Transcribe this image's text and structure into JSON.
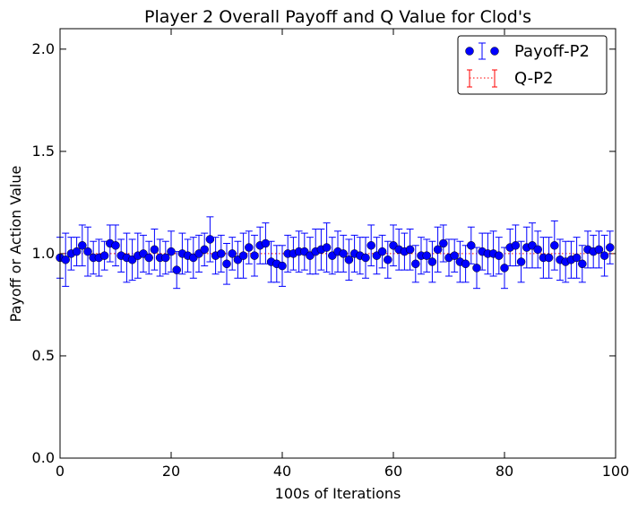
{
  "chart_data": {
    "type": "scatter",
    "title": "Player 2 Overall Payoff and Q Value for Clod's",
    "xlabel": "100s of Iterations",
    "ylabel": "Payoff or Action Value",
    "xlim": [
      0,
      100
    ],
    "ylim": [
      0,
      2.1
    ],
    "xticks": [
      0,
      20,
      40,
      60,
      80,
      100
    ],
    "yticks": [
      0.0,
      0.5,
      1.0,
      1.5,
      2.0
    ],
    "xtick_labels": [
      "0",
      "20",
      "40",
      "60",
      "80",
      "100"
    ],
    "ytick_labels": [
      "0.0",
      "0.5",
      "1.0",
      "1.5",
      "2.0"
    ],
    "grid": false,
    "legend_position": "top-right",
    "series": [
      {
        "name": "Payoff-P2",
        "style": "points-with-errorbars",
        "color": "#0000ff",
        "x": [
          0,
          1,
          2,
          3,
          4,
          5,
          6,
          7,
          8,
          9,
          10,
          11,
          12,
          13,
          14,
          15,
          16,
          17,
          18,
          19,
          20,
          21,
          22,
          23,
          24,
          25,
          26,
          27,
          28,
          29,
          30,
          31,
          32,
          33,
          34,
          35,
          36,
          37,
          38,
          39,
          40,
          41,
          42,
          43,
          44,
          45,
          46,
          47,
          48,
          49,
          50,
          51,
          52,
          53,
          54,
          55,
          56,
          57,
          58,
          59,
          60,
          61,
          62,
          63,
          64,
          65,
          66,
          67,
          68,
          69,
          70,
          71,
          72,
          73,
          74,
          75,
          76,
          77,
          78,
          79,
          80,
          81,
          82,
          83,
          84,
          85,
          86,
          87,
          88,
          89,
          90,
          91,
          92,
          93,
          94,
          95,
          96,
          97,
          98,
          99
        ],
        "y": [
          0.98,
          0.97,
          1.0,
          1.01,
          1.04,
          1.01,
          0.98,
          0.98,
          0.99,
          1.05,
          1.04,
          0.99,
          0.98,
          0.97,
          0.99,
          1.0,
          0.98,
          1.02,
          0.98,
          0.98,
          1.01,
          0.92,
          1.0,
          0.99,
          0.98,
          1.0,
          1.02,
          1.07,
          0.99,
          1.0,
          0.95,
          1.0,
          0.97,
          0.99,
          1.03,
          0.99,
          1.04,
          1.05,
          0.96,
          0.95,
          0.94,
          1.0,
          1.0,
          1.01,
          1.01,
          0.99,
          1.01,
          1.02,
          1.03,
          0.99,
          1.01,
          1.0,
          0.97,
          1.0,
          0.99,
          0.98,
          1.04,
          0.99,
          1.01,
          0.97,
          1.04,
          1.02,
          1.01,
          1.02,
          0.95,
          0.99,
          0.99,
          0.96,
          1.02,
          1.05,
          0.98,
          0.99,
          0.96,
          0.95,
          1.04,
          0.93,
          1.01,
          1.0,
          1.0,
          0.99,
          0.93,
          1.03,
          1.04,
          0.96,
          1.03,
          1.04,
          1.02,
          0.98,
          0.98,
          1.04,
          0.97,
          0.96,
          0.97,
          0.98,
          0.95,
          1.02,
          1.01,
          1.02,
          0.99,
          1.03
        ],
        "err": [
          0.1,
          0.13,
          0.08,
          0.07,
          0.1,
          0.12,
          0.08,
          0.09,
          0.07,
          0.09,
          0.1,
          0.08,
          0.12,
          0.1,
          0.11,
          0.09,
          0.08,
          0.1,
          0.09,
          0.08,
          0.1,
          0.09,
          0.1,
          0.08,
          0.1,
          0.09,
          0.08,
          0.11,
          0.09,
          0.09,
          0.1,
          0.08,
          0.09,
          0.11,
          0.08,
          0.1,
          0.09,
          0.1,
          0.1,
          0.09,
          0.1,
          0.09,
          0.08,
          0.1,
          0.09,
          0.09,
          0.11,
          0.1,
          0.12,
          0.09,
          0.1,
          0.09,
          0.1,
          0.09,
          0.09,
          0.1,
          0.1,
          0.09,
          0.08,
          0.09,
          0.1,
          0.1,
          0.09,
          0.1,
          0.09,
          0.09,
          0.08,
          0.1,
          0.11,
          0.09,
          0.09,
          0.08,
          0.1,
          0.09,
          0.09,
          0.1,
          0.09,
          0.1,
          0.11,
          0.09,
          0.1,
          0.09,
          0.1,
          0.1,
          0.1,
          0.11,
          0.09,
          0.1,
          0.1,
          0.12,
          0.1,
          0.1,
          0.09,
          0.1,
          0.09,
          0.09,
          0.08,
          0.09,
          0.1,
          0.08
        ]
      },
      {
        "name": "Q-P2",
        "style": "dotted-errorbar-line",
        "color": "#ff0000",
        "x": [
          0,
          100
        ],
        "y": [
          1.0,
          1.0
        ]
      }
    ]
  }
}
